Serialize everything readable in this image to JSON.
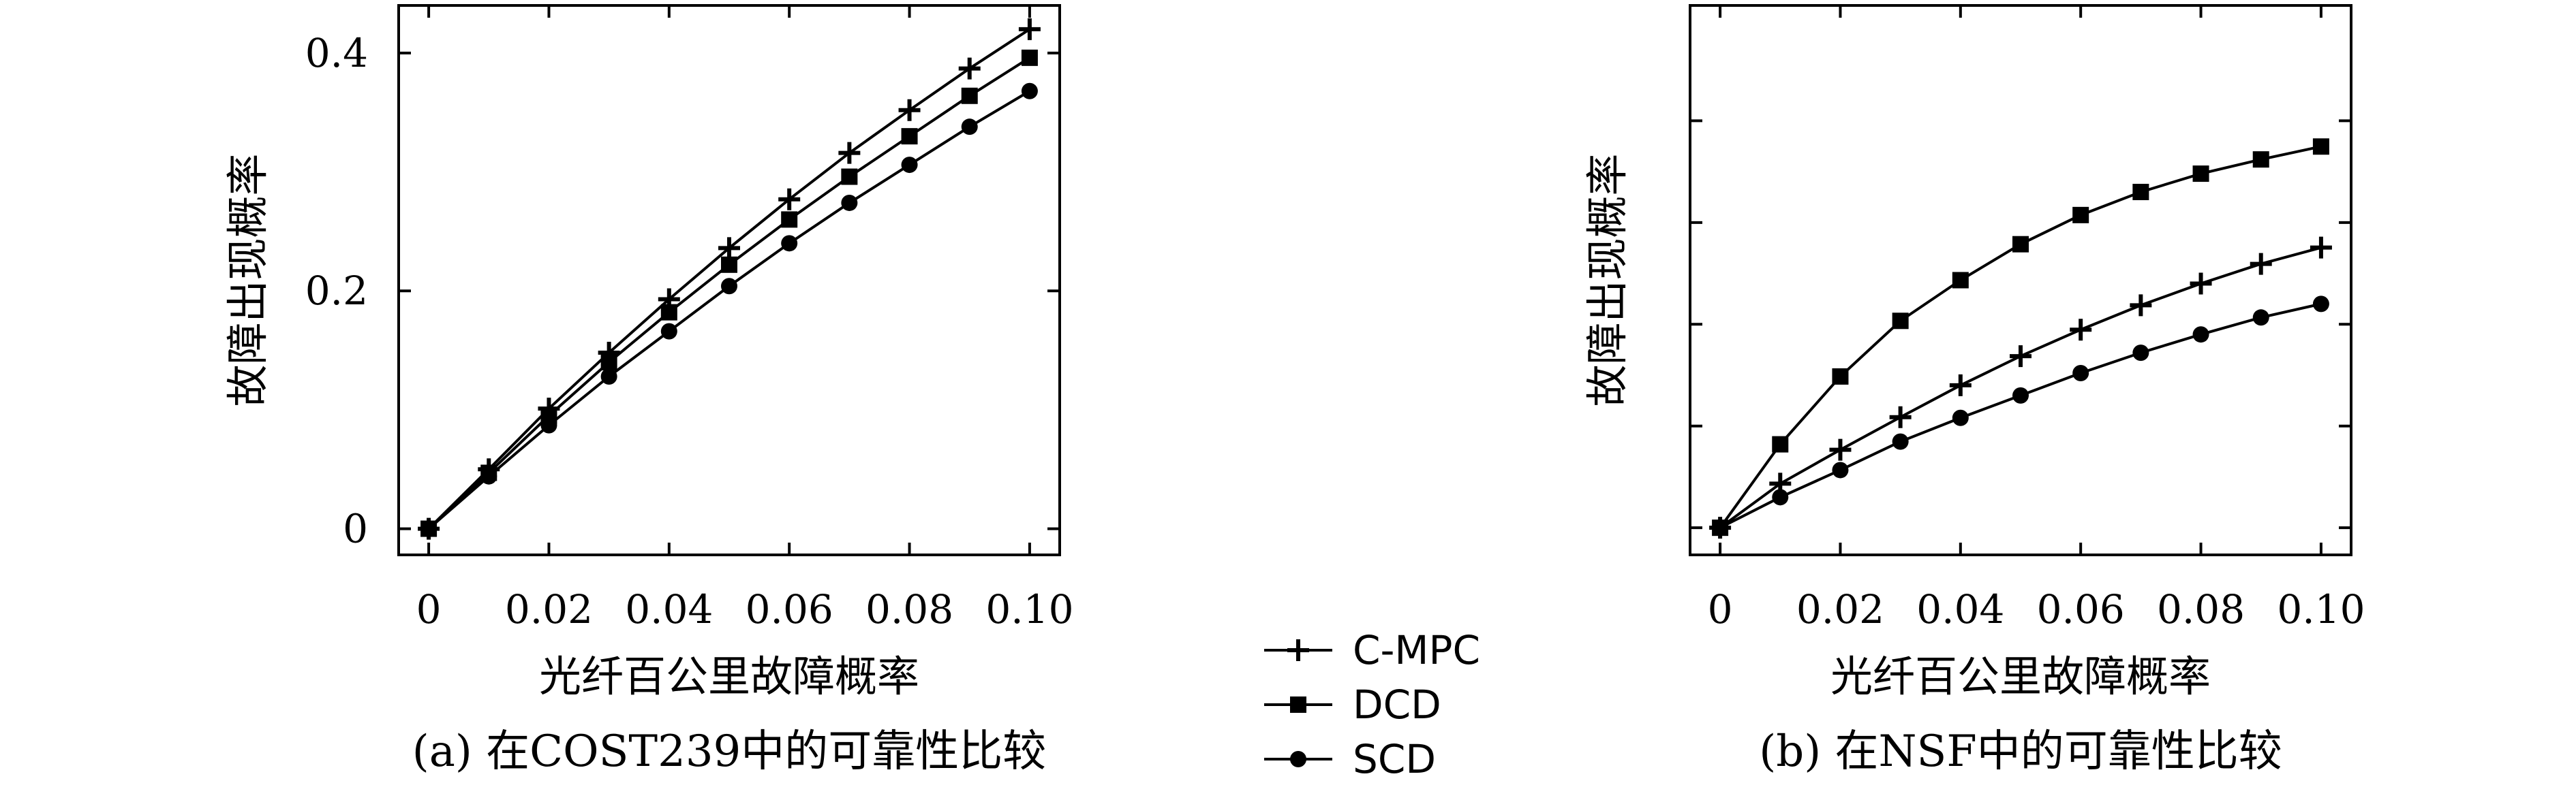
{
  "chart_data": [
    {
      "type": "line",
      "caption": "(a) 在COST239中的可靠性比较",
      "xlabel": "光纤百公里故障概率",
      "ylabel": "故障出现概率",
      "x": [
        0,
        0.01,
        0.02,
        0.03,
        0.04,
        0.05,
        0.06,
        0.07,
        0.08,
        0.09,
        0.1
      ],
      "xticks": [
        "0",
        "0.02",
        "0.04",
        "0.06",
        "0.08",
        "0.10"
      ],
      "yticks": [
        "0",
        "0.2",
        "0.4"
      ],
      "xlim": [
        -0.005,
        0.105
      ],
      "ylim": [
        -0.022,
        0.44
      ],
      "series": [
        {
          "name": "C-MPC",
          "marker": "plus",
          "values": [
            0,
            0.05,
            0.101,
            0.148,
            0.193,
            0.236,
            0.277,
            0.316,
            0.352,
            0.387,
            0.42
          ]
        },
        {
          "name": "DCD",
          "marker": "square",
          "values": [
            0,
            0.047,
            0.095,
            0.14,
            0.182,
            0.222,
            0.26,
            0.296,
            0.33,
            0.364,
            0.396
          ]
        },
        {
          "name": "SCD",
          "marker": "circle",
          "values": [
            0,
            0.044,
            0.087,
            0.128,
            0.166,
            0.204,
            0.24,
            0.274,
            0.306,
            0.338,
            0.368
          ]
        }
      ]
    },
    {
      "type": "line",
      "caption": "(b) 在NSF中的可靠性比较",
      "xlabel": "光纤百公里故障概率",
      "ylabel": "故障出现概率",
      "x": [
        0,
        0.01,
        0.02,
        0.03,
        0.04,
        0.05,
        0.06,
        0.07,
        0.08,
        0.09,
        0.1
      ],
      "xticks": [
        "0",
        "0.02",
        "0.04",
        "0.06",
        "0.08",
        "0.10"
      ],
      "yticks": [
        "",
        "",
        "",
        "",
        ""
      ],
      "xlim": [
        -0.005,
        0.105
      ],
      "ylim": [
        -0.004,
        0.077
      ],
      "series": [
        {
          "name": "C-MPC",
          "marker": "plus",
          "values": [
            0,
            0.0065,
            0.0115,
            0.0163,
            0.021,
            0.0253,
            0.0292,
            0.0328,
            0.036,
            0.0389,
            0.0413
          ]
        },
        {
          "name": "DCD",
          "marker": "square",
          "values": [
            0,
            0.0123,
            0.0223,
            0.0305,
            0.0365,
            0.0418,
            0.0461,
            0.0495,
            0.0522,
            0.0543,
            0.0562
          ]
        },
        {
          "name": "SCD",
          "marker": "circle",
          "values": [
            0,
            0.0045,
            0.0085,
            0.0127,
            0.0162,
            0.0195,
            0.0228,
            0.0258,
            0.0285,
            0.031,
            0.033
          ]
        }
      ]
    }
  ],
  "legend": {
    "entries": [
      {
        "label": "C-MPC",
        "marker": "plus"
      },
      {
        "label": "DCD",
        "marker": "square"
      },
      {
        "label": "SCD",
        "marker": "circle"
      }
    ]
  },
  "colors": {
    "line": "#000000",
    "background": "#ffffff"
  }
}
